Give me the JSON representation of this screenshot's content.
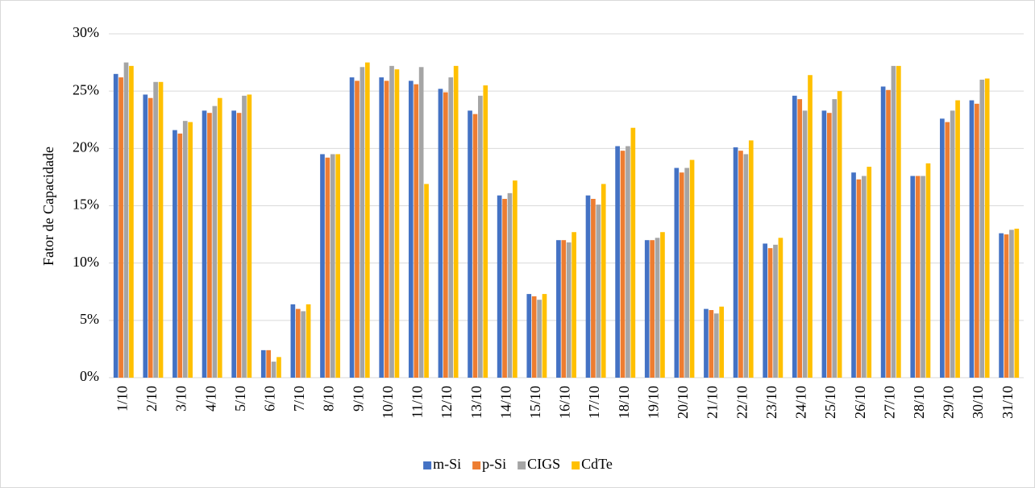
{
  "chart_data": {
    "type": "bar",
    "y_label": "Fator de Capacidade",
    "categories": [
      "1/10",
      "2/10",
      "3/10",
      "4/10",
      "5/10",
      "6/10",
      "7/10",
      "8/10",
      "9/10",
      "10/10",
      "11/10",
      "12/10",
      "13/10",
      "14/10",
      "15/10",
      "16/10",
      "17/10",
      "18/10",
      "19/10",
      "20/10",
      "21/10",
      "22/10",
      "23/10",
      "24/10",
      "25/10",
      "26/10",
      "27/10",
      "28/10",
      "29/10",
      "30/10",
      "31/10"
    ],
    "series": [
      {
        "name": "m-Si",
        "color": "#4472c4",
        "values": [
          26.5,
          24.7,
          21.6,
          23.3,
          23.3,
          2.4,
          6.4,
          19.5,
          26.2,
          26.2,
          25.9,
          25.2,
          23.3,
          15.9,
          7.3,
          12.0,
          15.9,
          20.2,
          12.0,
          18.3,
          6.0,
          20.1,
          11.7,
          24.6,
          23.3,
          17.9,
          25.4,
          17.6,
          22.6,
          24.2,
          12.6
        ]
      },
      {
        "name": "p-Si",
        "color": "#ed7d31",
        "values": [
          26.2,
          24.4,
          21.3,
          23.1,
          23.1,
          2.4,
          6.0,
          19.2,
          25.9,
          25.9,
          25.6,
          24.9,
          23.0,
          15.6,
          7.1,
          12.0,
          15.6,
          19.8,
          12.0,
          17.9,
          5.9,
          19.8,
          11.3,
          24.3,
          23.1,
          17.3,
          25.1,
          17.6,
          22.3,
          23.9,
          12.5
        ]
      },
      {
        "name": "CIGS",
        "color": "#a5a5a5",
        "values": [
          27.5,
          25.8,
          22.4,
          23.7,
          24.6,
          1.4,
          5.8,
          19.5,
          27.1,
          27.2,
          27.1,
          26.2,
          24.6,
          16.1,
          6.8,
          11.8,
          15.1,
          20.2,
          12.2,
          18.3,
          5.6,
          19.5,
          11.6,
          23.3,
          24.3,
          17.6,
          27.2,
          17.6,
          23.3,
          26.0,
          12.9
        ]
      },
      {
        "name": "CdTe",
        "color": "#ffc000",
        "values": [
          27.2,
          25.8,
          22.3,
          24.4,
          24.7,
          1.8,
          6.4,
          19.5,
          27.5,
          26.9,
          16.9,
          27.2,
          25.5,
          17.2,
          7.3,
          12.7,
          16.9,
          21.8,
          12.7,
          19.0,
          6.2,
          20.7,
          12.2,
          26.4,
          25.0,
          18.4,
          27.2,
          18.7,
          24.2,
          26.1,
          13.0
        ]
      }
    ],
    "ylim": [
      0,
      30
    ],
    "yticks": [
      {
        "value": 0,
        "label": "0%"
      },
      {
        "value": 5,
        "label": "5%"
      },
      {
        "value": 10,
        "label": "10%"
      },
      {
        "value": 15,
        "label": "15%"
      },
      {
        "value": 20,
        "label": "20%"
      },
      {
        "value": 25,
        "label": "25%"
      },
      {
        "value": 30,
        "label": "30%"
      }
    ],
    "grid": true,
    "legend": "bottom"
  }
}
